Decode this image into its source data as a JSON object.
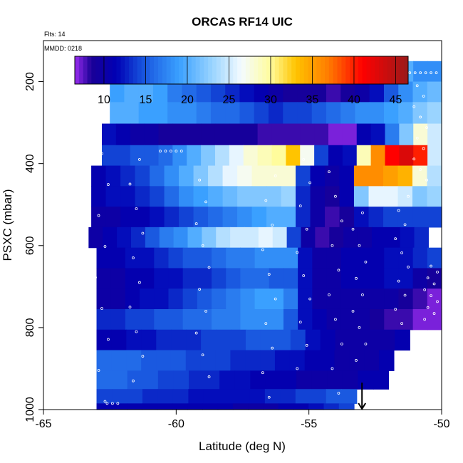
{
  "chart_data": {
    "type": "heatmap",
    "title": "ORCAS RF14 UIC",
    "annotations": {
      "flights": "Flts: 14",
      "date": "MMDD: 0218"
    },
    "xlabel": "Latitude (deg N)",
    "ylabel": "PSXC (mbar)",
    "xlim": [
      -65,
      -50
    ],
    "ylim": [
      1000,
      100
    ],
    "y_reversed": true,
    "x_ticks": [
      -65,
      -60,
      -55,
      -50
    ],
    "y_ticks": [
      200,
      400,
      600,
      800,
      1000
    ],
    "colorbar": {
      "range": [
        6.5,
        46.5
      ],
      "ticks": [
        10,
        15,
        20,
        25,
        30,
        35,
        40,
        45
      ],
      "stops": [
        {
          "v": 6.5,
          "color": "#9a2cf0"
        },
        {
          "v": 8.5,
          "color": "#1a0096"
        },
        {
          "v": 11.5,
          "color": "#0000b4"
        },
        {
          "v": 14.5,
          "color": "#1650dc"
        },
        {
          "v": 19.0,
          "color": "#3aa0ff"
        },
        {
          "v": 23.0,
          "color": "#9ad4ff"
        },
        {
          "v": 26.5,
          "color": "#f4fbff"
        },
        {
          "v": 30.0,
          "color": "#fffc9c"
        },
        {
          "v": 33.0,
          "color": "#ffc400"
        },
        {
          "v": 37.0,
          "color": "#ff7a00"
        },
        {
          "v": 41.0,
          "color": "#ff0000"
        },
        {
          "v": 46.5,
          "color": "#991a1a"
        }
      ]
    },
    "lat_range": [
      -63,
      -51
    ],
    "levels": [
      {
        "p": 175,
        "range": [
          -62.3,
          -50.0
        ],
        "values": [
          18,
          18,
          19,
          19,
          19,
          20,
          20,
          20,
          20,
          21,
          21,
          21,
          21,
          20,
          20,
          20,
          21,
          22,
          22,
          22,
          20,
          18,
          18
        ]
      },
      {
        "p": 225,
        "range": [
          -62.5,
          -50.0
        ],
        "values": [
          19,
          20,
          20,
          19,
          17,
          16,
          15,
          14,
          13,
          12,
          11,
          10,
          9,
          9,
          9,
          8,
          9,
          10,
          12,
          15,
          18,
          20,
          21
        ]
      },
      {
        "p": 275,
        "range": [
          -62.5,
          -50.0
        ],
        "values": [
          20,
          20,
          19,
          19,
          18,
          18,
          17,
          16,
          16,
          15,
          14,
          13,
          14,
          14,
          15,
          16,
          17,
          18,
          18,
          19,
          20,
          22,
          23
        ]
      },
      {
        "p": 330,
        "range": [
          -62.8,
          -50.0
        ],
        "values": [
          12,
          11,
          10,
          10,
          9,
          9,
          9,
          9,
          9,
          9,
          9,
          8,
          8,
          8,
          8,
          8,
          7,
          7,
          11,
          12,
          17,
          22,
          28,
          25
        ]
      },
      {
        "p": 380,
        "range": [
          -62.8,
          -50.0
        ],
        "values": [
          14,
          14,
          15,
          15,
          16,
          18,
          20,
          22,
          24,
          26,
          28,
          29,
          30,
          33,
          27,
          14,
          11,
          12,
          29,
          36,
          41,
          43,
          40,
          25
        ]
      },
      {
        "p": 430,
        "range": [
          -63.2,
          -50.0
        ],
        "values": [
          11,
          12,
          13,
          14,
          16,
          18,
          20,
          22,
          24,
          26,
          27,
          28,
          28,
          28,
          14,
          11,
          10,
          11,
          36,
          36,
          35,
          34,
          28,
          24
        ]
      },
      {
        "p": 480,
        "range": [
          -63.2,
          -50.0
        ],
        "values": [
          11,
          12,
          12,
          13,
          14,
          16,
          18,
          19,
          20,
          21,
          22,
          22,
          22,
          23,
          13,
          10,
          9,
          11,
          22,
          26,
          26,
          25,
          22,
          23
        ]
      },
      {
        "p": 530,
        "range": [
          -63.2,
          -50.0
        ],
        "values": [
          10,
          10,
          11,
          11,
          12,
          13,
          14,
          15,
          16,
          17,
          18,
          19,
          20,
          20,
          13,
          10,
          8,
          9,
          12,
          13,
          14,
          14,
          14,
          14
        ]
      },
      {
        "p": 580,
        "range": [
          -63.3,
          -50.5
        ],
        "values": [
          10,
          11,
          12,
          13,
          15,
          17,
          18,
          20,
          22,
          24,
          25,
          25,
          26,
          25,
          14,
          10,
          8,
          9,
          10,
          10,
          11,
          11,
          12,
          13
        ]
      },
      {
        "p": 630,
        "range": [
          -63.0,
          -50.0
        ],
        "values": [
          11,
          11,
          12,
          12,
          13,
          14,
          15,
          15,
          16,
          17,
          17,
          18,
          18,
          18,
          12,
          10,
          10,
          11,
          11,
          11,
          12,
          12,
          13,
          14
        ]
      },
      {
        "p": 680,
        "range": [
          -63.0,
          -50.0
        ],
        "values": [
          10,
          10,
          11,
          11,
          12,
          12,
          13,
          13,
          14,
          15,
          16,
          16,
          15,
          15,
          12,
          10,
          10,
          11,
          11,
          11,
          12,
          12,
          10,
          9
        ]
      },
      {
        "p": 730,
        "range": [
          -63.0,
          -50.0
        ],
        "values": [
          10,
          10,
          11,
          12,
          12,
          13,
          14,
          15,
          16,
          17,
          18,
          19,
          19,
          17,
          12,
          10,
          10,
          10,
          10,
          10,
          10,
          9,
          8,
          7
        ]
      },
      {
        "p": 780,
        "range": [
          -63.0,
          -50.0
        ],
        "values": [
          13,
          13,
          14,
          14,
          15,
          15,
          16,
          16,
          17,
          17,
          18,
          18,
          18,
          15,
          12,
          11,
          10,
          10,
          10,
          9,
          8,
          8,
          7,
          7
        ]
      },
      {
        "p": 830,
        "range": [
          -63.0,
          -51.2
        ],
        "values": [
          11,
          11,
          12,
          12,
          13,
          13,
          13,
          14,
          14,
          14,
          15,
          15,
          15,
          14,
          12,
          11,
          10,
          10,
          10,
          10,
          11
        ]
      },
      {
        "p": 880,
        "range": [
          -63.0,
          -51.8
        ],
        "values": [
          16,
          16,
          16,
          15,
          15,
          15,
          14,
          14,
          14,
          13,
          13,
          13,
          12,
          12,
          11,
          11,
          10,
          10,
          10,
          11
        ]
      },
      {
        "p": 930,
        "range": [
          -63.0,
          -52.0
        ],
        "values": [
          16,
          16,
          15,
          15,
          14,
          14,
          13,
          13,
          12,
          12,
          11,
          11,
          11,
          10,
          10,
          10,
          10,
          11,
          11
        ]
      },
      {
        "p": 970,
        "range": [
          -63.0,
          -53.2
        ],
        "values": [
          14,
          14,
          14,
          13,
          13,
          13,
          12,
          12,
          12,
          12,
          12,
          13,
          13,
          14,
          14,
          15,
          15
        ]
      },
      {
        "p": 1000,
        "range": [
          -63.0,
          -53.3
        ],
        "values": [
          11,
          11,
          11,
          11,
          11,
          11,
          11,
          11,
          11,
          10,
          10,
          10,
          11,
          11,
          12,
          13,
          14
        ]
      }
    ],
    "arrow": {
      "lat": -53.0,
      "p": 990
    }
  }
}
